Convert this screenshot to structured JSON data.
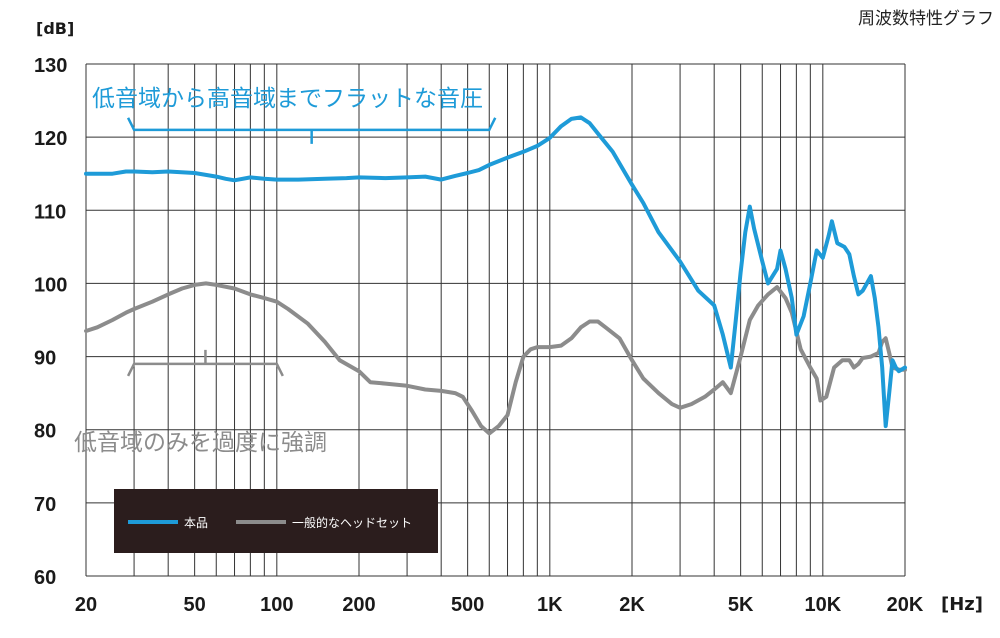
{
  "chart_data": {
    "type": "line",
    "title": "周波数特性グラフ",
    "y_unit": "[dB]",
    "x_unit": "[Hz]",
    "x_scale": "log",
    "xlim": [
      20,
      20000
    ],
    "ylim": [
      60,
      130
    ],
    "y_ticks": [
      60,
      70,
      80,
      90,
      100,
      110,
      120,
      130
    ],
    "y_tick_labels": [
      "60",
      "70",
      "80",
      "90",
      "100",
      "110",
      "120",
      "130"
    ],
    "x_ticks": [
      20,
      50,
      100,
      200,
      500,
      1000,
      2000,
      5000,
      10000,
      20000
    ],
    "x_tick_labels": [
      "20",
      "50",
      "100",
      "200",
      "500",
      "1K",
      "2K",
      "5K",
      "10K",
      "20K"
    ],
    "grid": true,
    "legend_position": "bottom-left",
    "colors": {
      "series_1": "#1e9bd8",
      "series_2": "#8c8c8c",
      "legend_bg": "#2b1d1d"
    },
    "series": [
      {
        "name": "本品",
        "points": [
          [
            20,
            115.0
          ],
          [
            22,
            115.0
          ],
          [
            25,
            115.0
          ],
          [
            28,
            115.3
          ],
          [
            30,
            115.3
          ],
          [
            35,
            115.2
          ],
          [
            40,
            115.3
          ],
          [
            50,
            115.1
          ],
          [
            60,
            114.6
          ],
          [
            65,
            114.3
          ],
          [
            70,
            114.1
          ],
          [
            80,
            114.5
          ],
          [
            90,
            114.3
          ],
          [
            100,
            114.2
          ],
          [
            120,
            114.2
          ],
          [
            150,
            114.3
          ],
          [
            180,
            114.4
          ],
          [
            200,
            114.5
          ],
          [
            250,
            114.4
          ],
          [
            300,
            114.5
          ],
          [
            350,
            114.6
          ],
          [
            400,
            114.2
          ],
          [
            450,
            114.7
          ],
          [
            500,
            115.1
          ],
          [
            550,
            115.5
          ],
          [
            600,
            116.2
          ],
          [
            700,
            117.2
          ],
          [
            800,
            118.0
          ],
          [
            900,
            118.8
          ],
          [
            1000,
            119.9
          ],
          [
            1100,
            121.5
          ],
          [
            1200,
            122.5
          ],
          [
            1300,
            122.7
          ],
          [
            1400,
            121.9
          ],
          [
            1500,
            120.5
          ],
          [
            1700,
            118.0
          ],
          [
            2000,
            113.5
          ],
          [
            2200,
            111.0
          ],
          [
            2500,
            107.0
          ],
          [
            3000,
            103.0
          ],
          [
            3500,
            99.0
          ],
          [
            4000,
            97.0
          ],
          [
            4300,
            93.0
          ],
          [
            4600,
            88.5
          ],
          [
            4800,
            95.0
          ],
          [
            5000,
            101.5
          ],
          [
            5200,
            107.0
          ],
          [
            5400,
            110.5
          ],
          [
            5600,
            107.5
          ],
          [
            6000,
            103.0
          ],
          [
            6300,
            100.0
          ],
          [
            6800,
            102.0
          ],
          [
            7000,
            104.5
          ],
          [
            7300,
            102.0
          ],
          [
            7700,
            98.0
          ],
          [
            8000,
            93.0
          ],
          [
            8500,
            95.5
          ],
          [
            9000,
            100.0
          ],
          [
            9500,
            104.5
          ],
          [
            10000,
            103.5
          ],
          [
            10500,
            106.5
          ],
          [
            10800,
            108.5
          ],
          [
            11300,
            105.5
          ],
          [
            12000,
            105.0
          ],
          [
            12500,
            104.0
          ],
          [
            13000,
            101.0
          ],
          [
            13500,
            98.5
          ],
          [
            14000,
            99.0
          ],
          [
            14500,
            100.0
          ],
          [
            15000,
            101.0
          ],
          [
            15500,
            98.0
          ],
          [
            16000,
            94.0
          ],
          [
            16500,
            88.5
          ],
          [
            17000,
            80.5
          ],
          [
            17500,
            85.0
          ],
          [
            18000,
            89.5
          ],
          [
            18500,
            88.5
          ],
          [
            19000,
            88.0
          ],
          [
            20000,
            88.5
          ]
        ]
      },
      {
        "name": "一般的なヘッドセット",
        "points": [
          [
            20,
            93.5
          ],
          [
            22,
            94.0
          ],
          [
            25,
            95.0
          ],
          [
            28,
            96.0
          ],
          [
            30,
            96.5
          ],
          [
            35,
            97.5
          ],
          [
            40,
            98.5
          ],
          [
            45,
            99.3
          ],
          [
            50,
            99.8
          ],
          [
            55,
            100.0
          ],
          [
            60,
            99.8
          ],
          [
            70,
            99.3
          ],
          [
            80,
            98.5
          ],
          [
            90,
            98.0
          ],
          [
            100,
            97.5
          ],
          [
            110,
            96.5
          ],
          [
            130,
            94.5
          ],
          [
            150,
            92.0
          ],
          [
            170,
            89.5
          ],
          [
            200,
            88.0
          ],
          [
            220,
            86.5
          ],
          [
            250,
            86.3
          ],
          [
            300,
            86.0
          ],
          [
            350,
            85.5
          ],
          [
            400,
            85.3
          ],
          [
            450,
            85.0
          ],
          [
            480,
            84.5
          ],
          [
            520,
            82.5
          ],
          [
            560,
            80.5
          ],
          [
            600,
            79.5
          ],
          [
            650,
            80.5
          ],
          [
            700,
            82.0
          ],
          [
            750,
            86.5
          ],
          [
            800,
            90.0
          ],
          [
            850,
            91.0
          ],
          [
            900,
            91.3
          ],
          [
            1000,
            91.3
          ],
          [
            1100,
            91.5
          ],
          [
            1200,
            92.5
          ],
          [
            1300,
            94.0
          ],
          [
            1400,
            94.8
          ],
          [
            1500,
            94.8
          ],
          [
            1600,
            94.0
          ],
          [
            1800,
            92.5
          ],
          [
            2000,
            89.5
          ],
          [
            2200,
            87.0
          ],
          [
            2500,
            85.0
          ],
          [
            2800,
            83.5
          ],
          [
            3000,
            83.0
          ],
          [
            3300,
            83.5
          ],
          [
            3700,
            84.5
          ],
          [
            4000,
            85.5
          ],
          [
            4300,
            86.5
          ],
          [
            4600,
            85.0
          ],
          [
            5000,
            90.0
          ],
          [
            5400,
            95.0
          ],
          [
            5800,
            97.0
          ],
          [
            6300,
            98.5
          ],
          [
            6800,
            99.5
          ],
          [
            7300,
            98.0
          ],
          [
            7700,
            96.0
          ],
          [
            8300,
            91.0
          ],
          [
            9000,
            88.5
          ],
          [
            9500,
            87.0
          ],
          [
            9800,
            84.0
          ],
          [
            10300,
            84.5
          ],
          [
            11000,
            88.5
          ],
          [
            11800,
            89.5
          ],
          [
            12500,
            89.5
          ],
          [
            13000,
            88.5
          ],
          [
            13500,
            89.0
          ],
          [
            14000,
            89.8
          ],
          [
            15000,
            90.0
          ],
          [
            16000,
            90.5
          ],
          [
            16500,
            92.0
          ],
          [
            17000,
            92.5
          ],
          [
            17500,
            90.5
          ],
          [
            18000,
            88.5
          ],
          [
            19000,
            88.2
          ],
          [
            20000,
            88.2
          ]
        ]
      }
    ],
    "annotations": [
      {
        "text": "低音域から高音域までフラットな音圧",
        "color": "#1e9bd8",
        "span": [
          30,
          600
        ],
        "y": 121
      },
      {
        "text": "低音域のみを過度に強調",
        "color": "#8c8c8c",
        "span": [
          30,
          100
        ],
        "y": 89
      }
    ]
  }
}
